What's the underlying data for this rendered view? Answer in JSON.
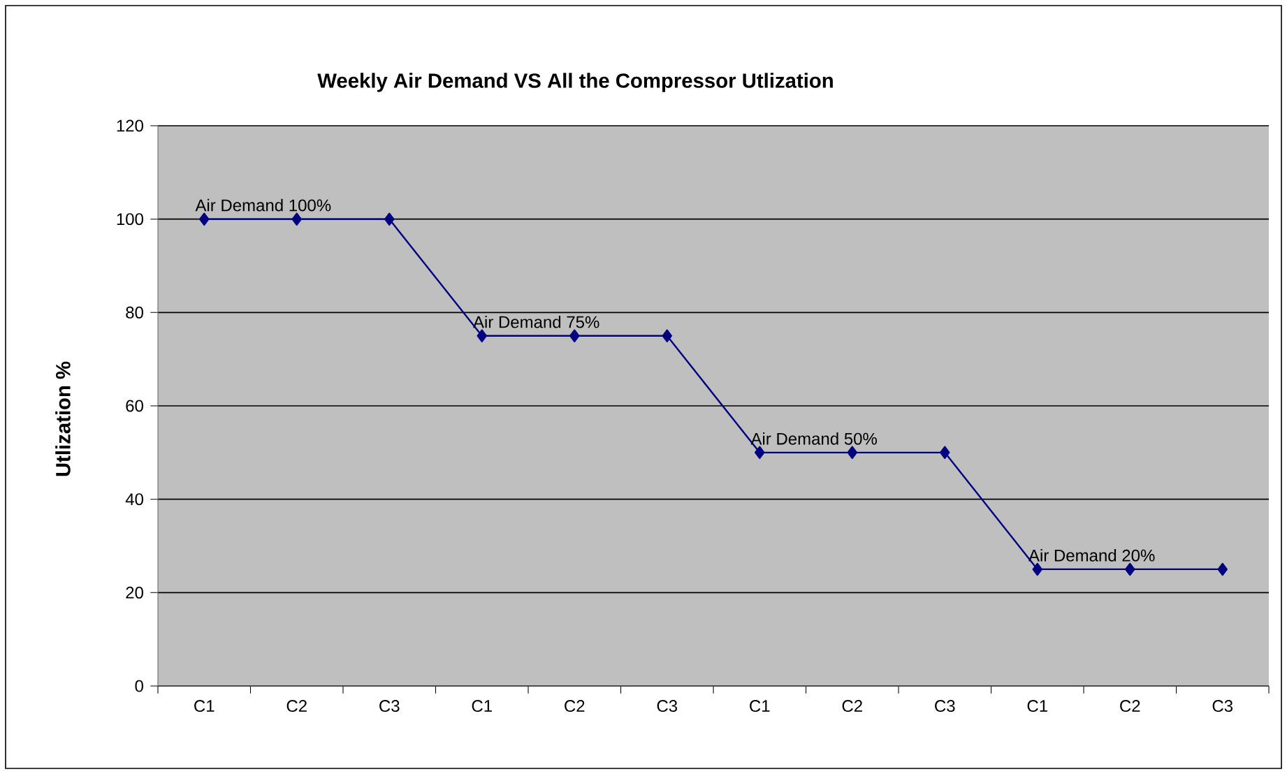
{
  "chart_data": {
    "type": "line",
    "title": "Weekly Air Demand VS All the Compressor Utlization",
    "ylabel": "Utlization %",
    "categories": [
      "C1",
      "C2",
      "C3",
      "C1",
      "C2",
      "C3",
      "C1",
      "C2",
      "C3",
      "C1",
      "C2",
      "C3"
    ],
    "series": [
      {
        "color": "#000080",
        "values": [
          100,
          100,
          100,
          75,
          75,
          75,
          50,
          50,
          50,
          25,
          25,
          25
        ]
      }
    ],
    "ylim": [
      0,
      120
    ],
    "yticks": [
      0,
      20,
      40,
      60,
      80,
      100,
      120
    ],
    "grid": "y",
    "marker": "diamond",
    "line_style": "solid",
    "annotations": [
      "Air Demand 100%",
      "Air Demand 75%",
      "Air Demand 50%",
      "Air Demand 20%"
    ]
  }
}
